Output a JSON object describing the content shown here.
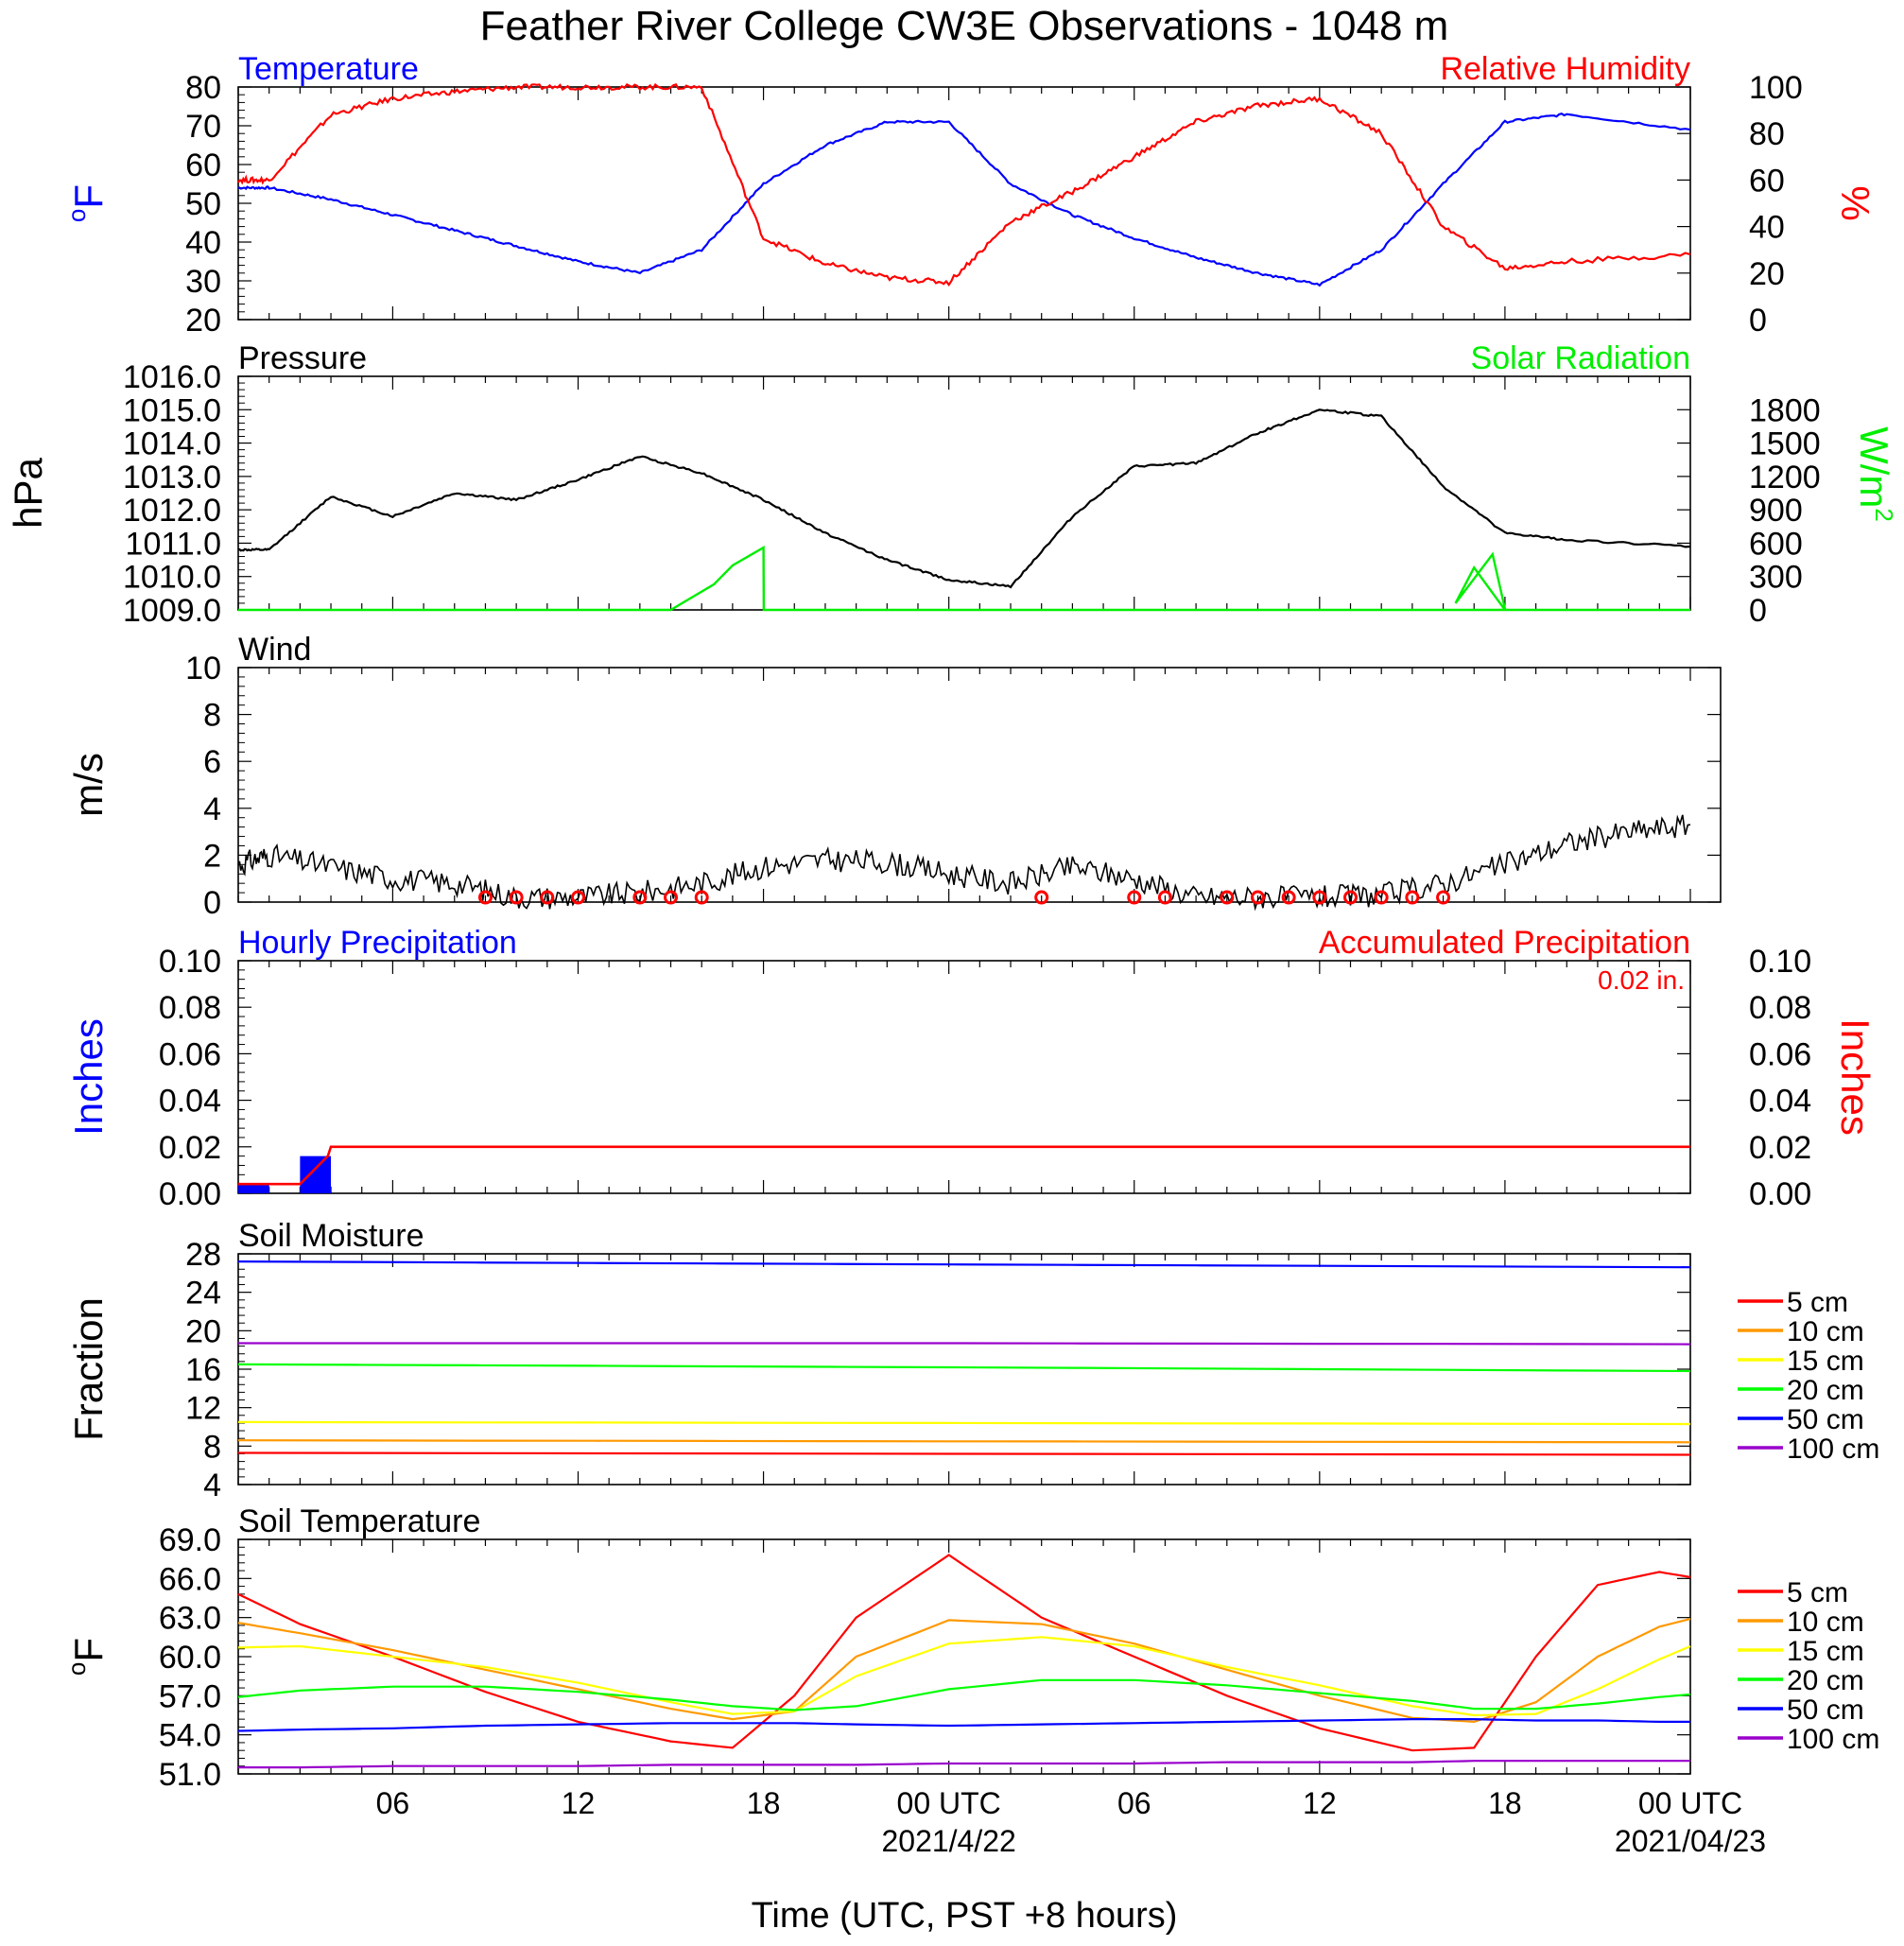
{
  "title": "Feather River College CW3E Observations - 1048 m",
  "xlabel": "Time (UTC, PST +8 hours)",
  "x_ticks": [
    "06",
    "12",
    "18",
    "00 UTC",
    "06",
    "12",
    "18",
    "00 UTC"
  ],
  "x_dates": [
    "2021/4/22",
    "2021/04/23"
  ],
  "chart_data": [
    {
      "type": "line",
      "panel": "temperature-humidity",
      "left_title": "Temperature",
      "right_title": "Relative Humidity",
      "ylabel": "oF",
      "y2label": "%",
      "ylim": [
        20,
        80
      ],
      "y2lim": [
        0,
        100
      ],
      "yticks": [
        "80",
        "70",
        "60",
        "50",
        "40",
        "30",
        "20"
      ],
      "y2ticks": [
        "100",
        "80",
        "60",
        "40",
        "20",
        "0"
      ],
      "x_hours": [
        1,
        2,
        4,
        6,
        8,
        10,
        12,
        14,
        16,
        18,
        20,
        22,
        24,
        26,
        28,
        30,
        32,
        34,
        36,
        38,
        40,
        42,
        44,
        48
      ],
      "series": [
        {
          "name": "Temperature",
          "color": "#0000ff",
          "axis": "left",
          "values": [
            54,
            54,
            51,
            47,
            43,
            39,
            35,
            32,
            38,
            55,
            65,
            71,
            71,
            55,
            47,
            41,
            36,
            32,
            29,
            38,
            55,
            71,
            73,
            69
          ]
        },
        {
          "name": "Relative Humidity",
          "color": "#ff0000",
          "axis": "right",
          "values": [
            60,
            60,
            88,
            95,
            98,
            100,
            100,
            100,
            100,
            35,
            24,
            18,
            16,
            42,
            55,
            70,
            85,
            92,
            95,
            80,
            40,
            22,
            25,
            28
          ]
        }
      ]
    },
    {
      "type": "line",
      "panel": "pressure-solar",
      "left_title": "Pressure",
      "right_title": "Solar Radiation",
      "ylabel": "hPa",
      "y2label": "W/m2",
      "ylim": [
        1009,
        1016
      ],
      "y2lim": [
        0,
        2100
      ],
      "yticks": [
        "1016.0",
        "1015.0",
        "1014.0",
        "1013.0",
        "1012.0",
        "1011.0",
        "1010.0",
        "1009.0"
      ],
      "y2ticks": [
        "1800",
        "1500",
        "1200",
        "900",
        "600",
        "300",
        "0"
      ],
      "series": [
        {
          "name": "Pressure",
          "color": "#000000",
          "axis": "left",
          "x_hours": [
            1,
            2,
            4,
            6,
            8,
            10,
            12,
            14,
            16,
            18,
            20,
            22,
            24,
            26,
            28,
            30,
            32,
            34,
            36,
            38,
            40,
            42,
            44,
            48
          ],
          "values": [
            1010.8,
            1010.8,
            1012.4,
            1011.8,
            1012.5,
            1012.3,
            1012.9,
            1013.6,
            1013.1,
            1012.3,
            1011.3,
            1010.5,
            1009.9,
            1009.7,
            1011.8,
            1013.3,
            1013.4,
            1014.3,
            1015.0,
            1014.8,
            1012.7,
            1011.3,
            1011.1,
            1010.9
          ]
        },
        {
          "name": "Solar Radiation",
          "color": "#00ee00",
          "axis": "right",
          "x_hours": [
            1,
            15,
            16.4,
            17,
            18,
            18.01,
            42,
            41,
            40.4,
            41.6,
            42.01,
            48
          ],
          "values": [
            0,
            0,
            230,
            400,
            560,
            0,
            0,
            380,
            60,
            500,
            0,
            0
          ]
        }
      ]
    },
    {
      "type": "line",
      "panel": "wind",
      "left_title": "Wind",
      "ylabel": "m/s",
      "ylim": [
        0,
        10
      ],
      "yticks": [
        "10",
        "8",
        "6",
        "4",
        "2",
        "0"
      ],
      "x_hours": [
        1,
        2,
        4,
        6,
        8,
        10,
        12,
        14,
        16,
        18,
        20,
        22,
        24,
        26,
        28,
        30,
        32,
        34,
        36,
        38,
        40,
        42,
        44,
        46,
        48
      ],
      "series": [
        {
          "name": "Wind speed",
          "color": "#000000",
          "values": [
            1.6,
            2.0,
            1.5,
            1.0,
            0.8,
            0.2,
            0.2,
            0.4,
            0.8,
            1.5,
            1.8,
            1.7,
            1.2,
            0.8,
            1.5,
            1.0,
            0.2,
            0.2,
            0.2,
            0.3,
            0.8,
            1.6,
            2.5,
            3.0,
            3.3
          ]
        }
      ],
      "calm_marker_hours": [
        9,
        10,
        11,
        12,
        14,
        15,
        16,
        27,
        30,
        31,
        33,
        34,
        35,
        36,
        37,
        38,
        39,
        40
      ]
    },
    {
      "type": "bar",
      "panel": "precipitation",
      "left_title": "Hourly Precipitation",
      "right_title": "Accumulated Precipitation",
      "total_label": "0.02 in.",
      "ylabel": "Inches",
      "y2label": "Inches",
      "ylim": [
        0,
        0.1
      ],
      "yticks": [
        "0.10",
        "0.08",
        "0.06",
        "0.04",
        "0.02",
        "0.00"
      ],
      "y2ticks": [
        "0.10",
        "0.08",
        "0.06",
        "0.04",
        "0.02",
        "0.00"
      ],
      "hourly_hours": [
        1,
        3
      ],
      "hourly_values": [
        0.004,
        0.016
      ],
      "accumulated_x_hours": [
        1,
        3,
        3.9,
        4,
        48
      ],
      "accumulated_values": [
        0.004,
        0.004,
        0.016,
        0.02,
        0.02
      ]
    },
    {
      "type": "line",
      "panel": "soil-moisture",
      "left_title": "Soil Moisture",
      "ylabel": "Fraction",
      "ylim": [
        4,
        28
      ],
      "yticks": [
        "28",
        "24",
        "20",
        "16",
        "12",
        "8",
        "4"
      ],
      "x_hours": [
        1,
        24,
        48
      ],
      "series": [
        {
          "name": "5 cm",
          "color": "#ff0000",
          "values": [
            7.3,
            7.2,
            7.1
          ]
        },
        {
          "name": "10 cm",
          "color": "#ff9900",
          "values": [
            8.6,
            8.5,
            8.4
          ]
        },
        {
          "name": "15 cm",
          "color": "#ffff00",
          "values": [
            10.5,
            10.4,
            10.3
          ]
        },
        {
          "name": "20 cm",
          "color": "#00ff00",
          "values": [
            16.5,
            16.2,
            15.8
          ]
        },
        {
          "name": "50 cm",
          "color": "#0000ff",
          "values": [
            27.2,
            26.9,
            26.6
          ]
        },
        {
          "name": "100 cm",
          "color": "#9900cc",
          "values": [
            18.7,
            18.7,
            18.6
          ]
        }
      ]
    },
    {
      "type": "line",
      "panel": "soil-temperature",
      "left_title": "Soil Temperature",
      "ylabel": "oF",
      "ylim": [
        51,
        69
      ],
      "yticks": [
        "69.0",
        "66.0",
        "63.0",
        "60.0",
        "57.0",
        "54.0",
        "51.0"
      ],
      "x_hours": [
        1,
        3,
        6,
        9,
        12,
        15,
        17,
        19,
        21,
        24,
        27,
        30,
        33,
        36,
        39,
        41,
        43,
        45,
        47,
        48
      ],
      "series": [
        {
          "name": "5 cm",
          "color": "#ff0000",
          "values": [
            64.8,
            62.5,
            60.0,
            57.3,
            55.0,
            53.5,
            53.0,
            57.0,
            63.0,
            67.8,
            63.0,
            60.0,
            57.0,
            54.5,
            52.8,
            53.0,
            60.0,
            65.5,
            66.5,
            66.1
          ]
        },
        {
          "name": "10 cm",
          "color": "#ff9900",
          "values": [
            62.6,
            61.8,
            60.5,
            59.0,
            57.5,
            56.0,
            55.2,
            55.8,
            60.0,
            62.8,
            62.5,
            61.0,
            59.0,
            57.0,
            55.3,
            55.0,
            56.5,
            60.0,
            62.3,
            62.9
          ]
        },
        {
          "name": "15 cm",
          "color": "#ffff00",
          "values": [
            60.7,
            60.8,
            60.0,
            59.2,
            58.0,
            56.5,
            55.6,
            55.8,
            58.5,
            61.0,
            61.5,
            60.8,
            59.2,
            57.8,
            56.2,
            55.5,
            55.6,
            57.5,
            59.8,
            60.8
          ]
        },
        {
          "name": "20 cm",
          "color": "#00ff00",
          "values": [
            56.9,
            57.4,
            57.7,
            57.7,
            57.3,
            56.7,
            56.2,
            55.9,
            56.2,
            57.5,
            58.2,
            58.2,
            57.8,
            57.2,
            56.6,
            56.0,
            56.0,
            56.4,
            56.9,
            57.1
          ]
        },
        {
          "name": "50 cm",
          "color": "#0000ff",
          "values": [
            54.3,
            54.4,
            54.5,
            54.7,
            54.8,
            54.9,
            54.9,
            54.9,
            54.8,
            54.7,
            54.8,
            54.9,
            55.0,
            55.1,
            55.2,
            55.2,
            55.1,
            55.1,
            55.0,
            55.0
          ]
        },
        {
          "name": "100 cm",
          "color": "#9900cc",
          "values": [
            51.5,
            51.5,
            51.6,
            51.6,
            51.6,
            51.7,
            51.7,
            51.7,
            51.7,
            51.8,
            51.8,
            51.8,
            51.9,
            51.9,
            51.9,
            52.0,
            52.0,
            52.0,
            52.0,
            52.0
          ]
        }
      ]
    }
  ]
}
